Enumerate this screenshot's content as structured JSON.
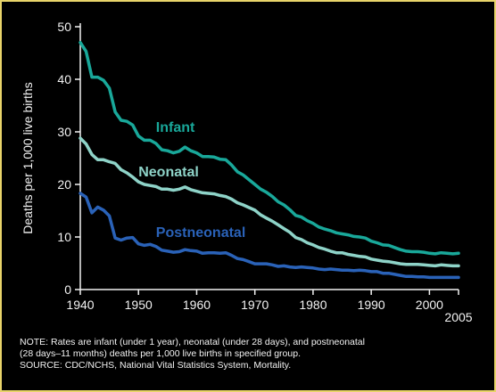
{
  "chart_data": {
    "type": "line",
    "title": "",
    "ylabel": "Deaths per 1,000 live births",
    "xlabel": "",
    "xlim": [
      1940,
      2005
    ],
    "ylim": [
      0,
      50
    ],
    "xticks": [
      1940,
      1950,
      1960,
      1970,
      1980,
      1990,
      2000,
      2005
    ],
    "yticks": [
      0,
      10,
      20,
      30,
      40,
      50
    ],
    "grid": false,
    "legend": "inline labels",
    "series": [
      {
        "name": "Infant",
        "color": "#19a89a",
        "x": [
          1940,
          1941,
          1942,
          1943,
          1944,
          1945,
          1946,
          1947,
          1948,
          1949,
          1950,
          1951,
          1952,
          1953,
          1954,
          1955,
          1956,
          1957,
          1958,
          1959,
          1960,
          1961,
          1962,
          1963,
          1964,
          1965,
          1966,
          1967,
          1968,
          1969,
          1970,
          1971,
          1972,
          1973,
          1974,
          1975,
          1976,
          1977,
          1978,
          1979,
          1980,
          1981,
          1982,
          1983,
          1984,
          1985,
          1986,
          1987,
          1988,
          1989,
          1990,
          1991,
          1992,
          1993,
          1994,
          1995,
          1996,
          1997,
          1998,
          1999,
          2000,
          2001,
          2002,
          2003,
          2004,
          2005
        ],
        "values": [
          47.0,
          45.3,
          40.4,
          40.4,
          39.8,
          38.3,
          33.8,
          32.2,
          32.0,
          31.3,
          29.2,
          28.4,
          28.4,
          27.8,
          26.6,
          26.4,
          26.0,
          26.3,
          27.1,
          26.4,
          26.0,
          25.3,
          25.3,
          25.2,
          24.8,
          24.7,
          23.7,
          22.4,
          21.8,
          20.9,
          20.0,
          19.1,
          18.5,
          17.7,
          16.7,
          16.1,
          15.2,
          14.1,
          13.8,
          13.1,
          12.6,
          11.9,
          11.5,
          11.2,
          10.8,
          10.6,
          10.4,
          10.1,
          10.0,
          9.8,
          9.2,
          8.9,
          8.5,
          8.4,
          8.0,
          7.6,
          7.3,
          7.2,
          7.2,
          7.1,
          6.9,
          6.8,
          7.0,
          6.9,
          6.8,
          6.9
        ]
      },
      {
        "name": "Neonatal",
        "color": "#8ed3c8",
        "x": [
          1940,
          1941,
          1942,
          1943,
          1944,
          1945,
          1946,
          1947,
          1948,
          1949,
          1950,
          1951,
          1952,
          1953,
          1954,
          1955,
          1956,
          1957,
          1958,
          1959,
          1960,
          1961,
          1962,
          1963,
          1964,
          1965,
          1966,
          1967,
          1968,
          1969,
          1970,
          1971,
          1972,
          1973,
          1974,
          1975,
          1976,
          1977,
          1978,
          1979,
          1980,
          1981,
          1982,
          1983,
          1984,
          1985,
          1986,
          1987,
          1988,
          1989,
          1990,
          1991,
          1992,
          1993,
          1994,
          1995,
          1996,
          1997,
          1998,
          1999,
          2000,
          2001,
          2002,
          2003,
          2004,
          2005
        ],
        "values": [
          28.8,
          27.7,
          25.7,
          24.7,
          24.7,
          24.3,
          24.0,
          22.8,
          22.2,
          21.4,
          20.5,
          20.0,
          19.8,
          19.6,
          19.1,
          19.1,
          18.9,
          19.1,
          19.5,
          19.0,
          18.7,
          18.4,
          18.3,
          18.2,
          17.9,
          17.7,
          17.2,
          16.5,
          16.1,
          15.6,
          15.1,
          14.2,
          13.6,
          13.0,
          12.3,
          11.6,
          10.9,
          9.9,
          9.5,
          8.9,
          8.5,
          8.0,
          7.7,
          7.3,
          7.0,
          7.0,
          6.7,
          6.5,
          6.3,
          6.2,
          5.8,
          5.6,
          5.4,
          5.3,
          5.1,
          4.9,
          4.8,
          4.8,
          4.8,
          4.7,
          4.6,
          4.5,
          4.7,
          4.6,
          4.5,
          4.5
        ]
      },
      {
        "name": "Postneonatal",
        "color": "#2a62b8",
        "x": [
          1940,
          1941,
          1942,
          1943,
          1944,
          1945,
          1946,
          1947,
          1948,
          1949,
          1950,
          1951,
          1952,
          1953,
          1954,
          1955,
          1956,
          1957,
          1958,
          1959,
          1960,
          1961,
          1962,
          1963,
          1964,
          1965,
          1966,
          1967,
          1968,
          1969,
          1970,
          1971,
          1972,
          1973,
          1974,
          1975,
          1976,
          1977,
          1978,
          1979,
          1980,
          1981,
          1982,
          1983,
          1984,
          1985,
          1986,
          1987,
          1988,
          1989,
          1990,
          1991,
          1992,
          1993,
          1994,
          1995,
          1996,
          1997,
          1998,
          1999,
          2000,
          2001,
          2002,
          2003,
          2004,
          2005
        ],
        "values": [
          18.3,
          17.6,
          14.6,
          15.7,
          15.1,
          14.0,
          9.8,
          9.4,
          9.8,
          9.9,
          8.7,
          8.4,
          8.6,
          8.2,
          7.5,
          7.3,
          7.1,
          7.2,
          7.6,
          7.4,
          7.3,
          6.9,
          7.0,
          7.0,
          6.9,
          7.0,
          6.5,
          5.9,
          5.7,
          5.3,
          4.9,
          4.9,
          4.9,
          4.7,
          4.4,
          4.5,
          4.3,
          4.2,
          4.3,
          4.2,
          4.1,
          3.9,
          3.8,
          3.9,
          3.8,
          3.7,
          3.7,
          3.6,
          3.7,
          3.6,
          3.4,
          3.4,
          3.1,
          3.1,
          2.9,
          2.7,
          2.5,
          2.5,
          2.4,
          2.4,
          2.3,
          2.3,
          2.3,
          2.3,
          2.3,
          2.3
        ]
      }
    ]
  },
  "note": {
    "line1": "NOTE: Rates are infant (under 1 year), neonatal (under 28 days), and postneonatal",
    "line2": "(28 days–11 months) deaths per 1,000 live births in specified group.",
    "source": "SOURCE:  CDC/NCHS, National Vital Statistics System, Mortality."
  }
}
